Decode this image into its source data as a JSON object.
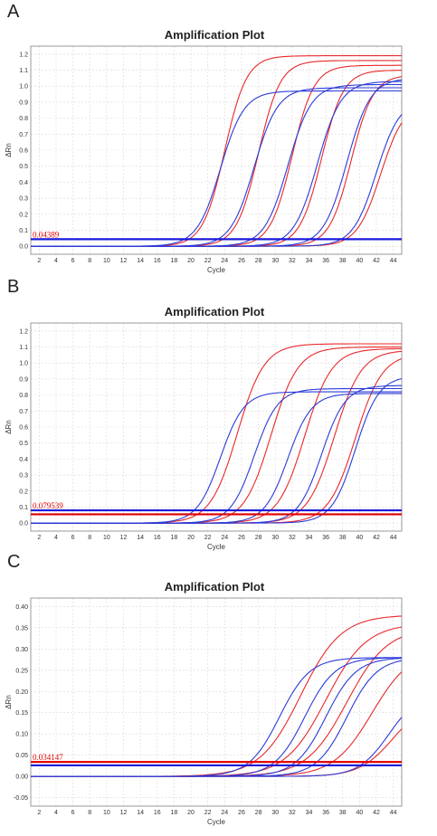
{
  "panels": [
    {
      "letter": "A",
      "title": "Amplification Plot",
      "threshold_label": "0.04389"
    },
    {
      "letter": "B",
      "title": "Amplification Plot",
      "threshold_label": "0.079539"
    },
    {
      "letter": "C",
      "title": "Amplification Plot",
      "threshold_label": "0.034147"
    }
  ],
  "chart_data": [
    {
      "type": "line",
      "title": "Amplification Plot",
      "xlabel": "Cycle",
      "ylabel": "ΔRn",
      "xlim": [
        1,
        45
      ],
      "ylim": [
        -0.05,
        1.25
      ],
      "xticks": [
        2,
        4,
        6,
        8,
        10,
        12,
        14,
        16,
        18,
        20,
        22,
        24,
        26,
        28,
        30,
        32,
        34,
        36,
        38,
        40,
        42,
        44
      ],
      "yticks": [
        0.0,
        0.1,
        0.2,
        0.3,
        0.4,
        0.5,
        0.6,
        0.7,
        0.8,
        0.9,
        1.0,
        1.1,
        1.2
      ],
      "ytick_decimals": 1,
      "grid": true,
      "thresholds": [
        {
          "value": 0.04389,
          "color": "#1a1adc"
        }
      ],
      "series": [
        {
          "color": "#e8282a",
          "plateau": 1.19,
          "midpoint": 24.0,
          "slope": 1.3
        },
        {
          "color": "#e8282a",
          "plateau": 1.16,
          "midpoint": 28.0,
          "slope": 1.3
        },
        {
          "color": "#e8282a",
          "plateau": 1.13,
          "midpoint": 32.0,
          "slope": 1.3
        },
        {
          "color": "#e8282a",
          "plateau": 1.1,
          "midpoint": 35.5,
          "slope": 1.3
        },
        {
          "color": "#e8282a",
          "plateau": 1.07,
          "midpoint": 39.0,
          "slope": 1.3
        },
        {
          "color": "#e8282a",
          "plateau": 0.9,
          "midpoint": 42.5,
          "slope": 1.4
        },
        {
          "color": "#2a3ad8",
          "plateau": 0.97,
          "midpoint": 23.5,
          "slope": 1.4
        },
        {
          "color": "#2a3ad8",
          "plateau": 0.99,
          "midpoint": 27.5,
          "slope": 1.4
        },
        {
          "color": "#2a3ad8",
          "plateau": 1.01,
          "midpoint": 31.5,
          "slope": 1.4
        },
        {
          "color": "#2a3ad8",
          "plateau": 1.03,
          "midpoint": 35.0,
          "slope": 1.4
        },
        {
          "color": "#2a3ad8",
          "plateau": 1.05,
          "midpoint": 38.5,
          "slope": 1.4
        },
        {
          "color": "#2a3ad8",
          "plateau": 0.92,
          "midpoint": 42.0,
          "slope": 1.4
        }
      ]
    },
    {
      "type": "line",
      "title": "Amplification Plot",
      "xlabel": "Cycle",
      "ylabel": "ΔRn",
      "xlim": [
        1,
        45
      ],
      "ylim": [
        -0.05,
        1.25
      ],
      "xticks": [
        2,
        4,
        6,
        8,
        10,
        12,
        14,
        16,
        18,
        20,
        22,
        24,
        26,
        28,
        30,
        32,
        34,
        36,
        38,
        40,
        42,
        44
      ],
      "yticks": [
        0.0,
        0.1,
        0.2,
        0.3,
        0.4,
        0.5,
        0.6,
        0.7,
        0.8,
        0.9,
        1.0,
        1.1,
        1.2
      ],
      "ytick_decimals": 1,
      "grid": true,
      "thresholds": [
        {
          "value": 0.079539,
          "color": "#1a1adc"
        },
        {
          "value": 0.055,
          "color": "#e00000"
        }
      ],
      "series": [
        {
          "color": "#e8282a",
          "plateau": 1.12,
          "midpoint": 25.5,
          "slope": 1.6
        },
        {
          "color": "#e8282a",
          "plateau": 1.1,
          "midpoint": 29.5,
          "slope": 1.6
        },
        {
          "color": "#e8282a",
          "plateau": 1.09,
          "midpoint": 33.5,
          "slope": 1.6
        },
        {
          "color": "#e8282a",
          "plateau": 1.08,
          "midpoint": 37.0,
          "slope": 1.6
        },
        {
          "color": "#e8282a",
          "plateau": 1.06,
          "midpoint": 39.5,
          "slope": 1.6
        },
        {
          "color": "#2a3ad8",
          "plateau": 0.82,
          "midpoint": 23.5,
          "slope": 1.4
        },
        {
          "color": "#2a3ad8",
          "plateau": 0.84,
          "midpoint": 27.5,
          "slope": 1.4
        },
        {
          "color": "#2a3ad8",
          "plateau": 0.81,
          "midpoint": 31.5,
          "slope": 1.4
        },
        {
          "color": "#2a3ad8",
          "plateau": 0.86,
          "midpoint": 35.5,
          "slope": 1.4
        },
        {
          "color": "#2a3ad8",
          "plateau": 0.92,
          "midpoint": 39.5,
          "slope": 1.4
        }
      ]
    },
    {
      "type": "line",
      "title": "Amplification Plot",
      "xlabel": "Cycle",
      "ylabel": "ΔRn",
      "xlim": [
        1,
        45
      ],
      "ylim": [
        -0.07,
        0.42
      ],
      "xticks": [
        2,
        4,
        6,
        8,
        10,
        12,
        14,
        16,
        18,
        20,
        22,
        24,
        26,
        28,
        30,
        32,
        34,
        36,
        38,
        40,
        42,
        44
      ],
      "yticks": [
        -0.05,
        0.0,
        0.05,
        0.1,
        0.15,
        0.2,
        0.25,
        0.3,
        0.35,
        0.4
      ],
      "ytick_decimals": 2,
      "grid": true,
      "thresholds": [
        {
          "value": 0.034147,
          "color": "#e00000"
        },
        {
          "value": 0.026,
          "color": "#1a1adc"
        }
      ],
      "series": [
        {
          "color": "#e8282a",
          "plateau": 0.38,
          "midpoint": 33.0,
          "slope": 2.4
        },
        {
          "color": "#e8282a",
          "plateau": 0.36,
          "midpoint": 36.0,
          "slope": 2.4
        },
        {
          "color": "#e8282a",
          "plateau": 0.35,
          "midpoint": 38.5,
          "slope": 2.4
        },
        {
          "color": "#e8282a",
          "plateau": 0.3,
          "midpoint": 41.5,
          "slope": 2.3
        },
        {
          "color": "#e8282a",
          "plateau": 0.18,
          "midpoint": 44.0,
          "slope": 2.0
        },
        {
          "color": "#2a3ad8",
          "plateau": 0.28,
          "midpoint": 30.5,
          "slope": 1.8
        },
        {
          "color": "#2a3ad8",
          "plateau": 0.28,
          "midpoint": 33.5,
          "slope": 1.8
        },
        {
          "color": "#2a3ad8",
          "plateau": 0.28,
          "midpoint": 36.0,
          "slope": 1.8
        },
        {
          "color": "#2a3ad8",
          "plateau": 0.28,
          "midpoint": 38.5,
          "slope": 1.8
        },
        {
          "color": "#2a3ad8",
          "plateau": 0.2,
          "midpoint": 43.5,
          "slope": 1.8
        }
      ]
    }
  ]
}
